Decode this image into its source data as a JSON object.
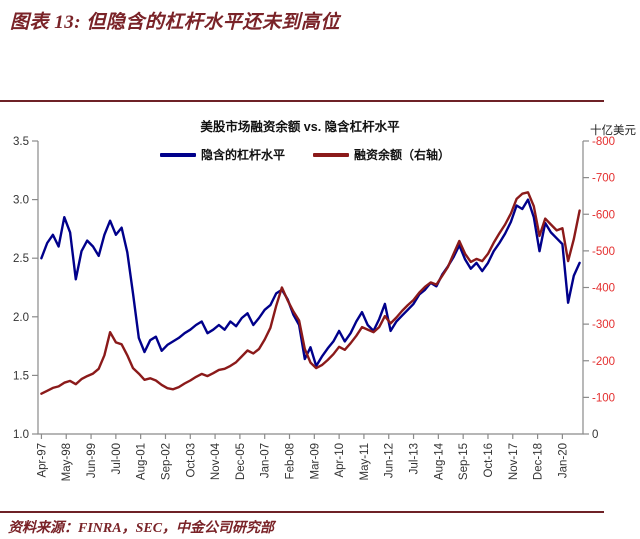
{
  "page": {
    "title": "图表 13:  但隐含的杠杆水平还未到高位",
    "source": "资料来源：FINRA，SEC，中金公司研究部"
  },
  "colors": {
    "title_maroon": "#7a2328",
    "rule_maroon": "#6e2126",
    "axis_gray": "#8a8a8a",
    "tick_text": "#333333",
    "negative_red": "#e42f2f"
  },
  "chart_data": {
    "type": "line",
    "title": "美股市场融资余额 vs. 隐含杠杆水平",
    "right_axis_unit": "十亿美元",
    "legend": [
      {
        "label": "隐含的杠杆水平",
        "color": "#00008b"
      },
      {
        "label": "融资余额（右轴）",
        "color": "#8b1a1a"
      }
    ],
    "x_range": [
      1997.1,
      2020.9
    ],
    "x_tick_labels": [
      "Apr-97",
      "May-98",
      "Jun-99",
      "Jul-00",
      "Aug-01",
      "Sep-02",
      "Oct-03",
      "Nov-04",
      "Dec-05",
      "Jan-07",
      "Feb-08",
      "Mar-09",
      "Apr-10",
      "May-11",
      "Jun-12",
      "Jul-13",
      "Aug-14",
      "Sep-15",
      "Oct-16",
      "Nov-17",
      "Dec-18",
      "Jan-20"
    ],
    "x_tick_times": [
      1997.25,
      1998.333,
      1999.417,
      2000.5,
      2001.583,
      2002.667,
      2003.75,
      2004.833,
      2005.917,
      2007.0,
      2008.083,
      2009.167,
      2010.25,
      2011.333,
      2012.417,
      2013.5,
      2014.583,
      2015.667,
      2016.75,
      2017.833,
      2018.917,
      2020.0
    ],
    "y_left": {
      "min": 1.0,
      "max": 3.5,
      "ticks": [
        "3.5",
        "3.0",
        "2.5",
        "2.0",
        "1.5",
        "1.0"
      ]
    },
    "y_right": {
      "min": -800,
      "max": 0,
      "ticks": [
        "-800",
        "-700",
        "-600",
        "-500",
        "-400",
        "-300",
        "-200",
        "-100",
        "0"
      ]
    },
    "x": [
      1997.25,
      1997.5,
      1997.75,
      1998,
      1998.25,
      1998.5,
      1998.75,
      1999,
      1999.25,
      1999.5,
      1999.75,
      2000,
      2000.25,
      2000.5,
      2000.75,
      2001,
      2001.25,
      2001.5,
      2001.75,
      2002,
      2002.25,
      2002.5,
      2002.75,
      2003,
      2003.25,
      2003.5,
      2003.75,
      2004,
      2004.25,
      2004.5,
      2004.75,
      2005,
      2005.25,
      2005.5,
      2005.75,
      2006,
      2006.25,
      2006.5,
      2006.75,
      2007,
      2007.25,
      2007.5,
      2007.75,
      2008,
      2008.25,
      2008.5,
      2008.75,
      2009,
      2009.25,
      2009.5,
      2009.75,
      2010,
      2010.25,
      2010.5,
      2010.75,
      2011,
      2011.25,
      2011.5,
      2011.75,
      2012,
      2012.25,
      2012.5,
      2012.75,
      2013,
      2013.25,
      2013.5,
      2013.75,
      2014,
      2014.25,
      2014.5,
      2014.75,
      2015,
      2015.25,
      2015.5,
      2015.75,
      2016,
      2016.25,
      2016.5,
      2016.75,
      2017,
      2017.25,
      2017.5,
      2017.75,
      2018,
      2018.25,
      2018.5,
      2018.75,
      2019,
      2019.25,
      2019.5,
      2019.75,
      2020,
      2020.25,
      2020.5,
      2020.75
    ],
    "series": [
      {
        "name": "隐含的杠杆水平",
        "axis": "left",
        "values": [
          2.5,
          2.63,
          2.7,
          2.6,
          2.85,
          2.72,
          2.32,
          2.56,
          2.65,
          2.6,
          2.52,
          2.7,
          2.82,
          2.7,
          2.76,
          2.55,
          2.2,
          1.82,
          1.7,
          1.8,
          1.83,
          1.71,
          1.76,
          1.79,
          1.82,
          1.86,
          1.89,
          1.93,
          1.96,
          1.86,
          1.89,
          1.93,
          1.89,
          1.96,
          1.92,
          1.99,
          2.03,
          1.93,
          1.99,
          2.06,
          2.1,
          2.2,
          2.23,
          2.15,
          2.02,
          1.93,
          1.64,
          1.74,
          1.58,
          1.66,
          1.73,
          1.79,
          1.88,
          1.79,
          1.86,
          1.96,
          2.04,
          1.93,
          1.88,
          1.98,
          2.11,
          1.88,
          1.96,
          2.01,
          2.06,
          2.11,
          2.19,
          2.23,
          2.29,
          2.26,
          2.36,
          2.43,
          2.51,
          2.61,
          2.49,
          2.41,
          2.46,
          2.39,
          2.46,
          2.56,
          2.63,
          2.71,
          2.81,
          2.95,
          2.92,
          3.0,
          2.85,
          2.56,
          2.8,
          2.72,
          2.67,
          2.62,
          2.12,
          2.35,
          2.46
        ]
      },
      {
        "name": "融资余额（右轴）",
        "axis": "right",
        "values": [
          -110,
          -118,
          -126,
          -130,
          -140,
          -145,
          -136,
          -150,
          -158,
          -165,
          -178,
          -215,
          -278,
          -250,
          -245,
          -215,
          -180,
          -165,
          -148,
          -152,
          -146,
          -134,
          -125,
          -122,
          -128,
          -138,
          -146,
          -156,
          -164,
          -158,
          -166,
          -175,
          -178,
          -186,
          -196,
          -212,
          -228,
          -220,
          -232,
          -258,
          -290,
          -350,
          -400,
          -365,
          -335,
          -310,
          -232,
          -195,
          -180,
          -188,
          -202,
          -218,
          -238,
          -230,
          -248,
          -268,
          -292,
          -285,
          -278,
          -292,
          -322,
          -302,
          -318,
          -336,
          -352,
          -366,
          -386,
          -402,
          -414,
          -408,
          -432,
          -456,
          -492,
          -527,
          -492,
          -470,
          -478,
          -472,
          -492,
          -522,
          -548,
          -572,
          -602,
          -642,
          -656,
          -660,
          -622,
          -541,
          -588,
          -572,
          -556,
          -562,
          -472,
          -532,
          -610
        ]
      }
    ]
  }
}
